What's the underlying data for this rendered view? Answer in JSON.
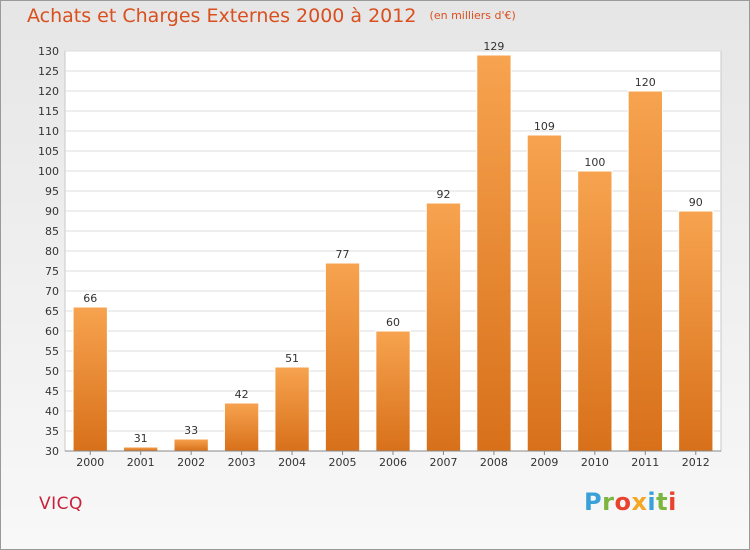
{
  "title": "Achats et Charges Externes 2000 à 2012",
  "unit": "(en milliers d'€)",
  "commune": "VICQ",
  "brand": {
    "letters": [
      "P",
      "r",
      "o",
      "x",
      "i",
      "t",
      "i"
    ],
    "colors": [
      "#3aa0d8",
      "#7cb640",
      "#e8432f",
      "#f5a623",
      "#3aa0d8",
      "#7cb640",
      "#e8432f"
    ]
  },
  "chart_data": {
    "type": "bar",
    "categories": [
      "2000",
      "2001",
      "2002",
      "2003",
      "2004",
      "2005",
      "2006",
      "2007",
      "2008",
      "2009",
      "2010",
      "2011",
      "2012"
    ],
    "values": [
      66,
      31,
      33,
      42,
      51,
      77,
      60,
      92,
      129,
      109,
      100,
      120,
      90
    ],
    "ylim": [
      30,
      130
    ],
    "yticks": [
      30,
      35,
      40,
      45,
      50,
      55,
      60,
      65,
      70,
      75,
      80,
      85,
      90,
      95,
      100,
      105,
      110,
      115,
      120,
      125,
      130
    ],
    "grid": true,
    "bar_color_top": "#f7a34f",
    "bar_color_bottom": "#d8701a"
  }
}
